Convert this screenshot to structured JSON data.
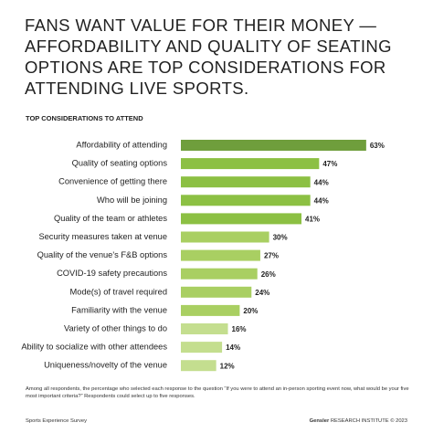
{
  "chart_data": {
    "type": "bar",
    "title": [
      "FANS WANT VALUE FOR THEIR MONEY —",
      "AFFORDABILITY AND QUALITY OF SEATING",
      "OPTIONS ARE TOP CONSIDERATIONS FOR",
      "ATTENDING LIVE SPORTS."
    ],
    "subtitle": "TOP CONSIDERATIONS TO ATTEND",
    "categories": [
      "Affordability of attending",
      "Quality of seating options",
      "Convenience of getting there",
      "Who will be joining",
      "Quality of the team or athletes",
      "Security measures taken at venue",
      "Quality of the venue's F&B options",
      "COVID-19 safety precautions",
      "Mode(s) of travel required",
      "Familiarity with the venue",
      "Variety of other things to do",
      "Ability to socialize with other attendees",
      "Uniqueness/novelty of the venue"
    ],
    "values": [
      63,
      47,
      44,
      44,
      41,
      30,
      27,
      26,
      24,
      20,
      16,
      14,
      12
    ],
    "value_labels": [
      "63%",
      "47%",
      "44%",
      "44%",
      "41%",
      "30%",
      "27%",
      "26%",
      "24%",
      "20%",
      "16%",
      "14%",
      "12%"
    ],
    "colors": [
      "#6f9e3c",
      "#8cc043",
      "#8cc043",
      "#8cc043",
      "#8cc043",
      "#a9cf62",
      "#a9cf62",
      "#a9cf62",
      "#a9cf62",
      "#a9cf62",
      "#c4de8f",
      "#c4de8f",
      "#c4de8f"
    ],
    "footnote": "Among all respondents, the percentage who selected each response to the question “If you were to attend an in-person sporting event now, what would be your five most important criteria?” Respondents could select up to five responses.",
    "source": "Sports Experience Survey",
    "brand": "Gensler",
    "credit": "RESEARCH INSTITUTE © 2023"
  }
}
